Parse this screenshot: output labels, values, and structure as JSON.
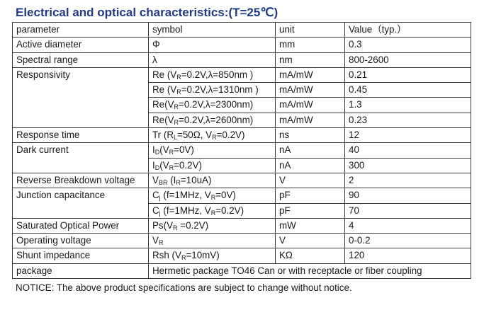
{
  "title": "Electrical and optical characteristics:(T=25℃)",
  "headers": {
    "parameter": "parameter",
    "symbol": "symbol",
    "unit": "unit",
    "value": "Value（typ.）"
  },
  "rows": [
    {
      "parameter": "Active diameter",
      "symbol": [
        "Φ"
      ],
      "unit": "mm",
      "value": "0.3"
    },
    {
      "parameter": "Spectral range",
      "symbol": [
        "λ"
      ],
      "unit": "nm",
      "value": "800-2600"
    },
    {
      "parameter": "Responsivity",
      "symbol": [
        "Re (V",
        "R",
        "=0.2V,λ=850nm )"
      ],
      "unit": "mA/mW",
      "value": "0.21"
    },
    {
      "parameter": "",
      "symbol": [
        "Re (V",
        "R",
        "=0.2V,λ=1310nm )"
      ],
      "unit": "mA/mW",
      "value": "0.45"
    },
    {
      "parameter": "",
      "symbol": [
        "Re(V",
        "R",
        "=0.2V,λ=2300nm)"
      ],
      "unit": "mA/mW",
      "value": "1.3"
    },
    {
      "parameter": "",
      "symbol": [
        "Re(V",
        "R",
        "=0.2V,λ=2600nm)"
      ],
      "unit": "mA/mW",
      "value": "0.23"
    },
    {
      "parameter": "Response time",
      "symbol": [
        "Tr (R",
        "L",
        "=50Ω, V",
        "R",
        "=0.2V)"
      ],
      "unit": "ns",
      "value": "12"
    },
    {
      "parameter": "Dark current",
      "symbol": [
        "I",
        "D",
        "(V",
        "R",
        "=0V)"
      ],
      "unit": "nA",
      "value": "40"
    },
    {
      "parameter": "",
      "symbol": [
        "I",
        "D",
        "(V",
        "R",
        "=0.2V)"
      ],
      "unit": "nA",
      "value": "300"
    },
    {
      "parameter": "Reverse Breakdown voltage",
      "symbol": [
        "V",
        "BR",
        " (I",
        "R",
        "=10uA)"
      ],
      "unit": "V",
      "value": "2"
    },
    {
      "parameter": "Junction capacitance",
      "symbol": [
        "C",
        "j",
        " (f=1MHz, V",
        "R",
        "=0V)"
      ],
      "unit": "pF",
      "value": "90"
    },
    {
      "parameter": "",
      "symbol": [
        "C",
        "j",
        " (f=1MHz, V",
        "R",
        "=0.2V)"
      ],
      "unit": "pF",
      "value": "70"
    },
    {
      "parameter": "Saturated Optical Power",
      "symbol": [
        "Ps(V",
        "R",
        " =0.2V)"
      ],
      "unit": "mW",
      "value": "4"
    },
    {
      "parameter": "Operating voltage",
      "symbol": [
        "V",
        "R"
      ],
      "unit": "V",
      "value": "0-0.2"
    },
    {
      "parameter": "Shunt impedance",
      "symbol": [
        "Rsh (V",
        "R",
        "=10mV)"
      ],
      "unit": "KΩ",
      "value": "120"
    }
  ],
  "package": {
    "parameter": "package",
    "value": "Hermetic package TO46 Can or with receptacle or fiber coupling"
  },
  "notice": "NOTICE: The above product specifications are subject to change without notice."
}
